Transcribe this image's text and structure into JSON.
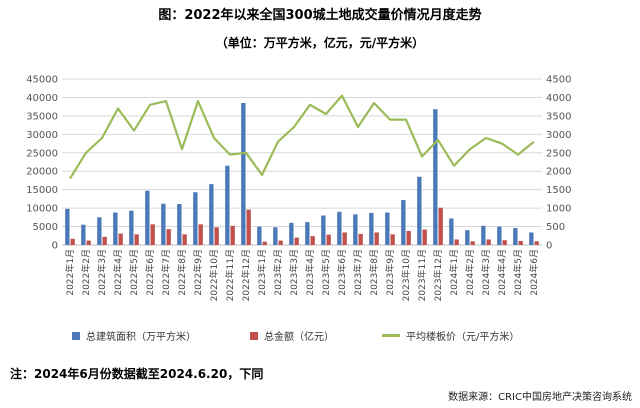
{
  "title": "图：2022年以来全国300城土地成交量价情况月度走势",
  "subtitle": "（单位：万平方米，亿元，元/平方米）",
  "note": "注：2024年6月份数据截至2024.6.20，下同",
  "source": "数据来源：CRIC中国房地产决策咨询系统",
  "colors": {
    "area": "#4a78b8",
    "amount": "#c0504d",
    "price": "#9bbb59",
    "grid": "#d9d9d9"
  },
  "chart_data": {
    "type": "bar",
    "categories": [
      "2022年1月",
      "2022年2月",
      "2022年3月",
      "2022年4月",
      "2022年5月",
      "2022年6月",
      "2022年7月",
      "2022年8月",
      "2022年9月",
      "2022年10月",
      "2022年11月",
      "2022年12月",
      "2023年1月",
      "2023年2月",
      "2023年3月",
      "2023年4月",
      "2023年5月",
      "2023年6月",
      "2023年7月",
      "2023年8月",
      "2023年9月",
      "2023年10月",
      "2023年11月",
      "2023年12月",
      "2024年1月",
      "2024年2月",
      "2024年3月",
      "2024年4月",
      "2024年5月",
      "2024年6月"
    ],
    "y_left_ticks": [
      "0",
      "5000",
      "10000",
      "15000",
      "20000",
      "25000",
      "30000",
      "35000",
      "40000",
      "45000"
    ],
    "y_right_ticks": [
      "0",
      "500",
      "1000",
      "1500",
      "2000",
      "2500",
      "3000",
      "3500",
      "4000",
      "4500"
    ],
    "ylim_left": [
      0,
      45000
    ],
    "ylim_right": [
      0,
      4500
    ],
    "series": [
      {
        "name": "总建筑面积（万平方米）",
        "type": "bar",
        "axis": "left",
        "values": [
          9800,
          5500,
          7500,
          8800,
          9300,
          14700,
          11200,
          11100,
          14300,
          16500,
          21500,
          38500,
          5000,
          4800,
          6000,
          6200,
          8000,
          9000,
          8300,
          8700,
          8800,
          12200,
          18500,
          36800,
          7200,
          4000,
          5200,
          5000,
          4600,
          3400
        ]
      },
      {
        "name": "总金额（亿元）",
        "type": "bar",
        "axis": "right",
        "values": [
          170,
          120,
          220,
          310,
          290,
          560,
          430,
          290,
          560,
          480,
          520,
          960,
          90,
          120,
          200,
          240,
          280,
          340,
          300,
          340,
          290,
          380,
          420,
          1010,
          150,
          100,
          150,
          130,
          110,
          100
        ]
      },
      {
        "name": "平均楼板价（元/平方米）",
        "type": "line",
        "axis": "right",
        "values": [
          1800,
          2500,
          2900,
          3700,
          3100,
          3800,
          3900,
          2600,
          3900,
          2900,
          2450,
          2500,
          1900,
          2800,
          3200,
          3800,
          3550,
          4050,
          3200,
          3850,
          3400,
          3400,
          2400,
          2850,
          2150,
          2600,
          2900,
          2750,
          2450,
          2800
        ]
      }
    ]
  }
}
